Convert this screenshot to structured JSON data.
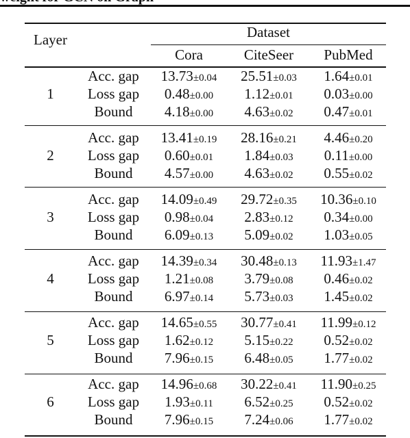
{
  "header": {
    "caption_fragment": "weight for GCN on Graph",
    "col_layer": "Layer",
    "col_dataset": "Dataset",
    "datasets": [
      "Cora",
      "CiteSeer",
      "PubMed"
    ]
  },
  "groups": [
    {
      "layer": "1",
      "rows": [
        {
          "metric": "Acc. gap",
          "cells": [
            {
              "v": "13.73",
              "e": "±0.04"
            },
            {
              "v": "25.51",
              "e": "±0.03"
            },
            {
              "v": "1.64",
              "e": "±0.01"
            }
          ]
        },
        {
          "metric": "Loss gap",
          "cells": [
            {
              "v": "0.48",
              "e": "±0.00"
            },
            {
              "v": "1.12",
              "e": "±0.01"
            },
            {
              "v": "0.03",
              "e": "±0.00"
            }
          ]
        },
        {
          "metric": "Bound",
          "cells": [
            {
              "v": "4.18",
              "e": "±0.00"
            },
            {
              "v": "4.63",
              "e": "±0.02"
            },
            {
              "v": "0.47",
              "e": "±0.01"
            }
          ]
        }
      ]
    },
    {
      "layer": "2",
      "rows": [
        {
          "metric": "Acc. gap",
          "cells": [
            {
              "v": "13.41",
              "e": "±0.19"
            },
            {
              "v": "28.16",
              "e": "±0.21"
            },
            {
              "v": "4.46",
              "e": "±0.20"
            }
          ]
        },
        {
          "metric": "Loss gap",
          "cells": [
            {
              "v": "0.60",
              "e": "±0.01"
            },
            {
              "v": "1.84",
              "e": "±0.03"
            },
            {
              "v": "0.11",
              "e": "±0.00"
            }
          ]
        },
        {
          "metric": "Bound",
          "cells": [
            {
              "v": "4.57",
              "e": "±0.00"
            },
            {
              "v": "4.63",
              "e": "±0.02"
            },
            {
              "v": "0.55",
              "e": "±0.02"
            }
          ]
        }
      ]
    },
    {
      "layer": "3",
      "rows": [
        {
          "metric": "Acc. gap",
          "cells": [
            {
              "v": "14.09",
              "e": "±0.49"
            },
            {
              "v": "29.72",
              "e": "±0.35"
            },
            {
              "v": "10.36",
              "e": "±0.10"
            }
          ]
        },
        {
          "metric": "Loss gap",
          "cells": [
            {
              "v": "0.98",
              "e": "±0.04"
            },
            {
              "v": "2.83",
              "e": "±0.12"
            },
            {
              "v": "0.34",
              "e": "±0.00"
            }
          ]
        },
        {
          "metric": "Bound",
          "cells": [
            {
              "v": "6.09",
              "e": "±0.13"
            },
            {
              "v": "5.09",
              "e": "±0.02"
            },
            {
              "v": "1.03",
              "e": "±0.05"
            }
          ]
        }
      ]
    },
    {
      "layer": "4",
      "rows": [
        {
          "metric": "Acc. gap",
          "cells": [
            {
              "v": "14.39",
              "e": "±0.34"
            },
            {
              "v": "30.48",
              "e": "±0.13"
            },
            {
              "v": "11.93",
              "e": "±1.47"
            }
          ]
        },
        {
          "metric": "Loss gap",
          "cells": [
            {
              "v": "1.21",
              "e": "±0.08"
            },
            {
              "v": "3.79",
              "e": "±0.08"
            },
            {
              "v": "0.46",
              "e": "±0.02"
            }
          ]
        },
        {
          "metric": "Bound",
          "cells": [
            {
              "v": "6.97",
              "e": "±0.14"
            },
            {
              "v": "5.73",
              "e": "±0.03"
            },
            {
              "v": "1.45",
              "e": "±0.02"
            }
          ]
        }
      ]
    },
    {
      "layer": "5",
      "rows": [
        {
          "metric": "Acc. gap",
          "cells": [
            {
              "v": "14.65",
              "e": "±0.55"
            },
            {
              "v": "30.77",
              "e": "±0.41"
            },
            {
              "v": "11.99",
              "e": "±0.12"
            }
          ]
        },
        {
          "metric": "Loss gap",
          "cells": [
            {
              "v": "1.62",
              "e": "±0.12"
            },
            {
              "v": "5.15",
              "e": "±0.22"
            },
            {
              "v": "0.52",
              "e": "±0.02"
            }
          ]
        },
        {
          "metric": "Bound",
          "cells": [
            {
              "v": "7.96",
              "e": "±0.15"
            },
            {
              "v": "6.48",
              "e": "±0.05"
            },
            {
              "v": "1.77",
              "e": "±0.02"
            }
          ]
        }
      ]
    },
    {
      "layer": "6",
      "rows": [
        {
          "metric": "Acc. gap",
          "cells": [
            {
              "v": "14.96",
              "e": "±0.68"
            },
            {
              "v": "30.22",
              "e": "±0.41"
            },
            {
              "v": "11.90",
              "e": "±0.25"
            }
          ]
        },
        {
          "metric": "Loss gap",
          "cells": [
            {
              "v": "1.93",
              "e": "±0.11"
            },
            {
              "v": "6.52",
              "e": "±0.25"
            },
            {
              "v": "0.52",
              "e": "±0.02"
            }
          ]
        },
        {
          "metric": "Bound",
          "cells": [
            {
              "v": "7.96",
              "e": "±0.15"
            },
            {
              "v": "7.24",
              "e": "±0.06"
            },
            {
              "v": "1.77",
              "e": "±0.02"
            }
          ]
        }
      ]
    }
  ]
}
